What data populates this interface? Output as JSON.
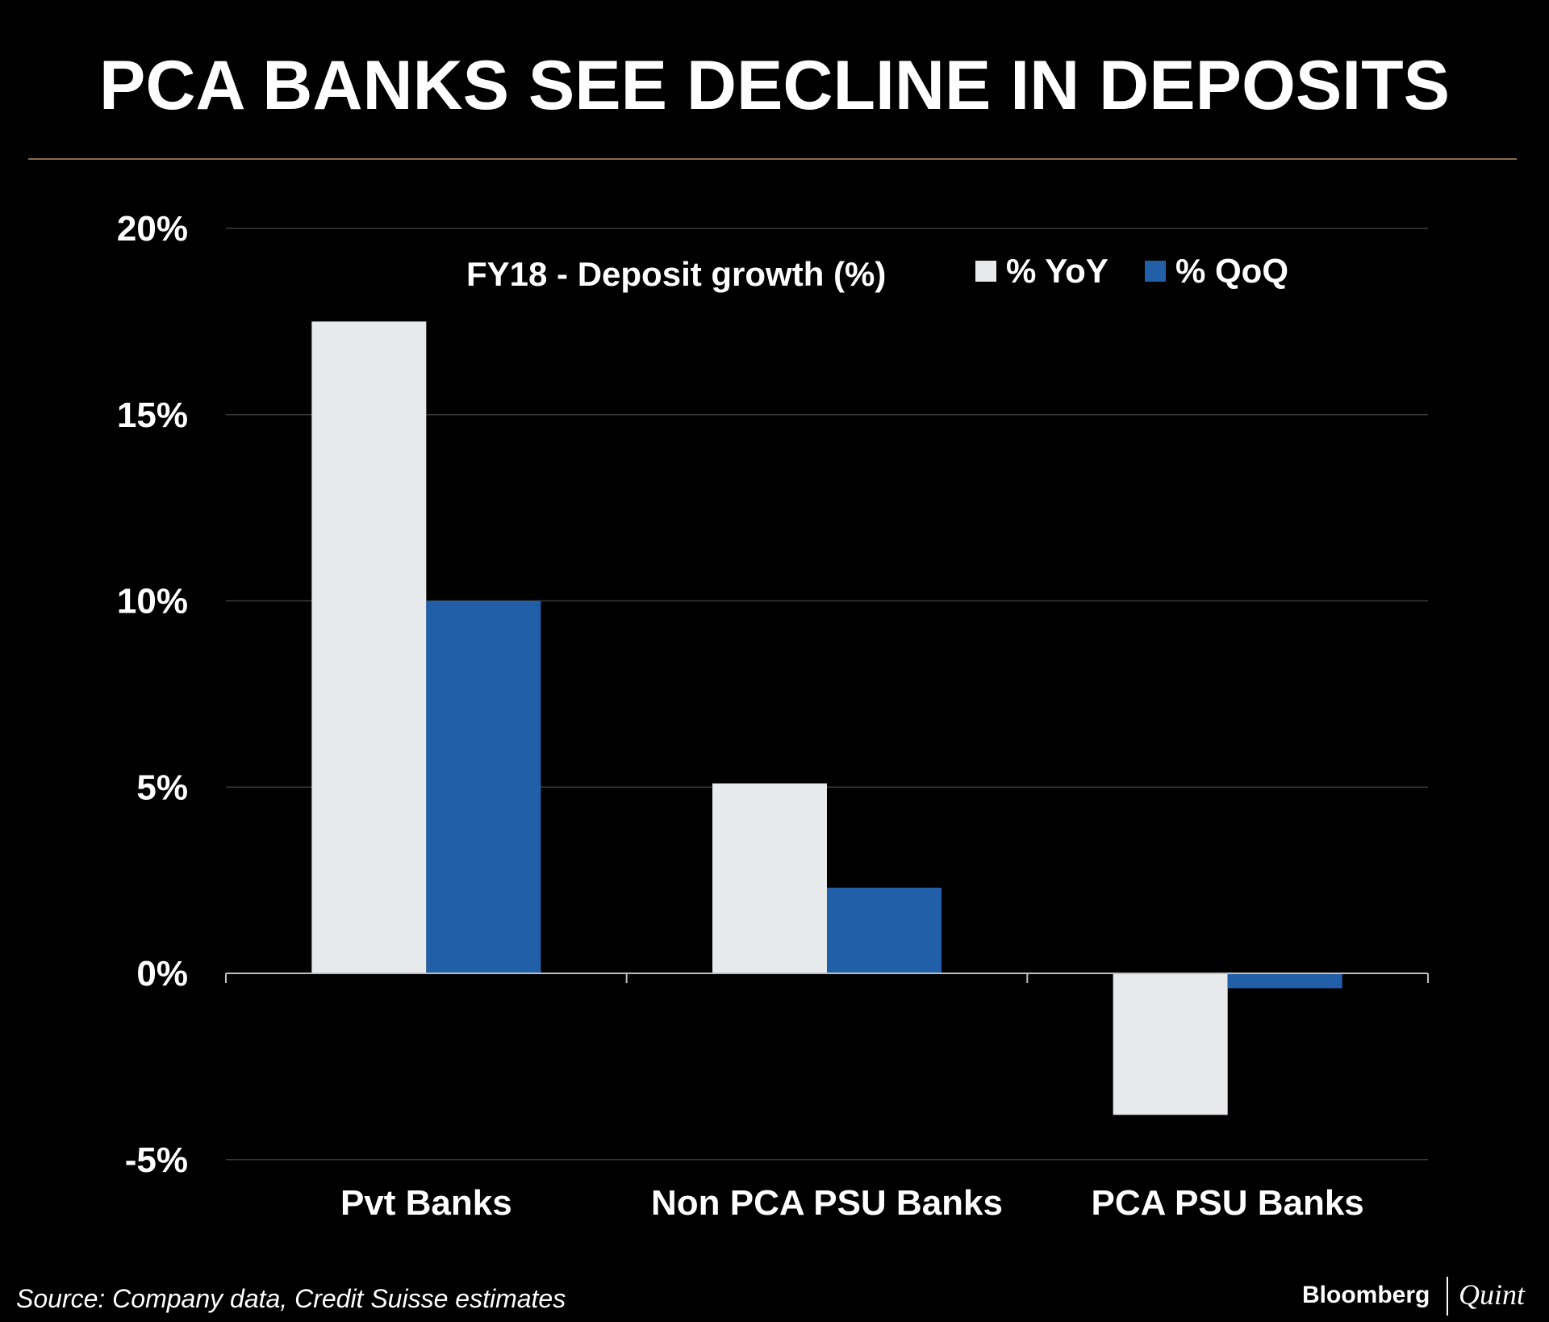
{
  "header": {
    "title": "PCA BANKS SEE DECLINE IN DEPOSITS"
  },
  "colors": {
    "background": "#000000",
    "rule": "#8a6a4f",
    "grid": "#3a3a3a",
    "axis": "#bfbfbf",
    "yoy": "#e8e9eb",
    "qoq": "#2160a8"
  },
  "chart_data": {
    "type": "bar",
    "title": "FY18 - Deposit growth (%)",
    "categories": [
      "Pvt Banks",
      "Non PCA PSU Banks",
      "PCA PSU Banks"
    ],
    "series": [
      {
        "name": "% YoY",
        "values": [
          17.5,
          5.1,
          -3.8
        ]
      },
      {
        "name": "% QoQ",
        "values": [
          10.0,
          2.3,
          -0.4
        ]
      }
    ],
    "y_ticks": [
      20,
      15,
      10,
      5,
      0,
      -5
    ],
    "y_tick_labels": [
      "20%",
      "15%",
      "10%",
      "5%",
      "0%",
      "-5%"
    ],
    "ylim": [
      -5,
      20
    ],
    "xlabel": "",
    "ylabel": "",
    "grid": true,
    "legend_position": "top-right"
  },
  "footer": {
    "source": "Source: Company data, Credit Suisse estimates",
    "brand_primary": "Bloomberg",
    "brand_secondary": "Quint"
  }
}
